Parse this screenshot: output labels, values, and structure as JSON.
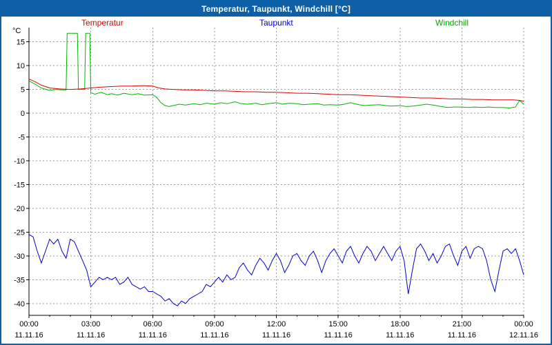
{
  "window": {
    "title": "Temperatur, Taupunkt, Windchill [°C]"
  },
  "legend": {
    "temperatur": "Temperatur",
    "taupunkt": "Taupunkt",
    "windchill": "Windchill"
  },
  "y_axis_unit": "°C",
  "colors": {
    "titlebar_bg": "#0d5fa6",
    "border": "#0d5fa6",
    "temperatur": "#dd0000",
    "taupunkt": "#0000cc",
    "windchill": "#00b400",
    "grid": "#999999",
    "axis": "#000000",
    "background": "#ffffff"
  },
  "chart_data": {
    "type": "line",
    "title": "Temperatur, Taupunkt, Windchill [°C]",
    "x_unit": "time (hours, 11.11.16 00:00 - 12.11.16 00:00)",
    "ylabel": "°C",
    "xlim": [
      0,
      24
    ],
    "ylim": [
      -42.5,
      18
    ],
    "grid": "dashed",
    "legend_position": "top",
    "y_ticks": [
      15,
      10,
      5,
      0,
      -5,
      -10,
      -15,
      -20,
      -25,
      -30,
      -35,
      -40
    ],
    "x_ticks": [
      {
        "hour": 0,
        "label": "00:00",
        "date": "11.11.16"
      },
      {
        "hour": 3,
        "label": "03:00",
        "date": "11.11.16"
      },
      {
        "hour": 6,
        "label": "06:00",
        "date": "11.11.16"
      },
      {
        "hour": 9,
        "label": "09:00",
        "date": "11.11.16"
      },
      {
        "hour": 12,
        "label": "12:00",
        "date": "11.11.16"
      },
      {
        "hour": 15,
        "label": "15:00",
        "date": "11.11.16"
      },
      {
        "hour": 18,
        "label": "18:00",
        "date": "11.11.16"
      },
      {
        "hour": 21,
        "label": "21:00",
        "date": "11.11.16"
      },
      {
        "hour": 24,
        "label": "00:00",
        "date": "12.11.16"
      }
    ],
    "series": [
      {
        "name": "Windchill",
        "color": "#00b400",
        "points": [
          [
            0,
            6.8
          ],
          [
            0.3,
            6.1
          ],
          [
            0.6,
            5.3
          ],
          [
            1,
            4.8
          ],
          [
            1.3,
            5.0
          ],
          [
            1.6,
            4.9
          ],
          [
            1.8,
            4.9
          ],
          [
            1.85,
            16.8
          ],
          [
            2.35,
            16.8
          ],
          [
            2.4,
            5.0
          ],
          [
            2.7,
            5.0
          ],
          [
            2.75,
            16.8
          ],
          [
            2.95,
            16.8
          ],
          [
            3,
            4.3
          ],
          [
            3.2,
            4.0
          ],
          [
            3.5,
            4.4
          ],
          [
            3.8,
            3.9
          ],
          [
            4,
            4.1
          ],
          [
            4.3,
            3.8
          ],
          [
            4.6,
            4.2
          ],
          [
            5,
            3.9
          ],
          [
            5.3,
            4.1
          ],
          [
            5.6,
            3.8
          ],
          [
            6,
            3.9
          ],
          [
            6.2,
            3.3
          ],
          [
            6.4,
            2.2
          ],
          [
            6.6,
            1.6
          ],
          [
            6.8,
            1.4
          ],
          [
            7,
            1.6
          ],
          [
            7.3,
            1.9
          ],
          [
            7.6,
            1.7
          ],
          [
            8,
            2.0
          ],
          [
            8.3,
            1.8
          ],
          [
            8.6,
            2.1
          ],
          [
            9,
            1.9
          ],
          [
            9.3,
            2.2
          ],
          [
            9.6,
            2.0
          ],
          [
            10,
            2.4
          ],
          [
            10.3,
            2.0
          ],
          [
            10.6,
            1.9
          ],
          [
            11,
            2.1
          ],
          [
            11.3,
            1.8
          ],
          [
            11.6,
            2.0
          ],
          [
            12,
            2.2
          ],
          [
            12.3,
            1.9
          ],
          [
            12.6,
            2.1
          ],
          [
            13,
            2.0
          ],
          [
            13.3,
            1.8
          ],
          [
            13.6,
            1.9
          ],
          [
            14,
            2.0
          ],
          [
            14.3,
            1.7
          ],
          [
            14.6,
            1.8
          ],
          [
            15,
            1.7
          ],
          [
            15.3,
            1.9
          ],
          [
            15.6,
            2.2
          ],
          [
            16,
            1.8
          ],
          [
            16.3,
            1.6
          ],
          [
            16.6,
            1.7
          ],
          [
            17,
            1.8
          ],
          [
            17.3,
            1.6
          ],
          [
            17.6,
            1.5
          ],
          [
            18,
            1.6
          ],
          [
            18.3,
            1.4
          ],
          [
            18.6,
            1.5
          ],
          [
            19,
            1.7
          ],
          [
            19.3,
            1.9
          ],
          [
            19.6,
            1.7
          ],
          [
            20,
            1.4
          ],
          [
            20.3,
            1.2
          ],
          [
            20.6,
            1.3
          ],
          [
            21,
            1.3
          ],
          [
            21.3,
            1.2
          ],
          [
            21.6,
            1.3
          ],
          [
            22,
            1.2
          ],
          [
            22.3,
            1.3
          ],
          [
            22.6,
            1.2
          ],
          [
            23,
            1.2
          ],
          [
            23.3,
            1.1
          ],
          [
            23.6,
            1.3
          ],
          [
            23.8,
            2.7
          ],
          [
            24,
            1.9
          ]
        ]
      },
      {
        "name": "Temperatur",
        "color": "#dd0000",
        "points": [
          [
            0,
            7.2
          ],
          [
            0.3,
            6.6
          ],
          [
            0.6,
            5.9
          ],
          [
            1,
            5.3
          ],
          [
            1.5,
            5.1
          ],
          [
            2,
            5.0
          ],
          [
            2.5,
            5.1
          ],
          [
            3,
            5.3
          ],
          [
            3.5,
            5.5
          ],
          [
            4,
            5.6
          ],
          [
            4.5,
            5.7
          ],
          [
            5,
            5.7
          ],
          [
            5.5,
            5.8
          ],
          [
            6,
            5.7
          ],
          [
            6.3,
            5.3
          ],
          [
            6.6,
            5.1
          ],
          [
            7,
            5.0
          ],
          [
            7.5,
            4.9
          ],
          [
            8,
            4.9
          ],
          [
            8.5,
            4.8
          ],
          [
            9,
            4.7
          ],
          [
            9.5,
            4.7
          ],
          [
            10,
            4.6
          ],
          [
            10.5,
            4.5
          ],
          [
            11,
            4.5
          ],
          [
            11.5,
            4.4
          ],
          [
            12,
            4.4
          ],
          [
            12.5,
            4.3
          ],
          [
            13,
            4.2
          ],
          [
            13.5,
            4.2
          ],
          [
            14,
            4.1
          ],
          [
            14.5,
            4.0
          ],
          [
            15,
            3.9
          ],
          [
            15.5,
            3.9
          ],
          [
            16,
            3.8
          ],
          [
            16.5,
            3.7
          ],
          [
            17,
            3.6
          ],
          [
            17.5,
            3.5
          ],
          [
            18,
            3.4
          ],
          [
            18.5,
            3.3
          ],
          [
            19,
            3.2
          ],
          [
            19.5,
            3.2
          ],
          [
            20,
            3.1
          ],
          [
            20.5,
            3.0
          ],
          [
            21,
            3.0
          ],
          [
            21.5,
            2.9
          ],
          [
            22,
            2.9
          ],
          [
            22.5,
            2.8
          ],
          [
            23,
            2.8
          ],
          [
            23.5,
            2.8
          ],
          [
            23.8,
            2.7
          ],
          [
            24,
            2.5
          ]
        ]
      },
      {
        "name": "Taupunkt",
        "color": "#0000cc",
        "points": [
          [
            0,
            -25.5
          ],
          [
            0.2,
            -26
          ],
          [
            0.4,
            -29
          ],
          [
            0.6,
            -31.5
          ],
          [
            0.8,
            -29
          ],
          [
            1,
            -26.5
          ],
          [
            1.2,
            -27.5
          ],
          [
            1.4,
            -26.5
          ],
          [
            1.6,
            -29
          ],
          [
            1.8,
            -30.5
          ],
          [
            2,
            -26.5
          ],
          [
            2.2,
            -27
          ],
          [
            2.4,
            -29
          ],
          [
            2.6,
            -31
          ],
          [
            2.8,
            -33
          ],
          [
            3,
            -36.5
          ],
          [
            3.2,
            -35.5
          ],
          [
            3.4,
            -34.5
          ],
          [
            3.6,
            -35
          ],
          [
            3.8,
            -34.5
          ],
          [
            4,
            -35
          ],
          [
            4.2,
            -34.5
          ],
          [
            4.4,
            -36
          ],
          [
            4.6,
            -35.5
          ],
          [
            4.8,
            -34.5
          ],
          [
            5,
            -36
          ],
          [
            5.2,
            -36.5
          ],
          [
            5.4,
            -37
          ],
          [
            5.6,
            -36.5
          ],
          [
            5.8,
            -37.5
          ],
          [
            6,
            -37.5
          ],
          [
            6.2,
            -38
          ],
          [
            6.4,
            -38.5
          ],
          [
            6.6,
            -39.5
          ],
          [
            6.8,
            -39
          ],
          [
            7,
            -40
          ],
          [
            7.2,
            -40.5
          ],
          [
            7.4,
            -39.5
          ],
          [
            7.6,
            -40
          ],
          [
            7.8,
            -39
          ],
          [
            8,
            -38.5
          ],
          [
            8.2,
            -38
          ],
          [
            8.4,
            -37.5
          ],
          [
            8.6,
            -36
          ],
          [
            8.8,
            -36.5
          ],
          [
            9,
            -35.5
          ],
          [
            9.2,
            -34.5
          ],
          [
            9.4,
            -35.5
          ],
          [
            9.6,
            -34
          ],
          [
            9.8,
            -35
          ],
          [
            10,
            -34.5
          ],
          [
            10.2,
            -32.5
          ],
          [
            10.4,
            -31.5
          ],
          [
            10.6,
            -33
          ],
          [
            10.8,
            -34
          ],
          [
            11,
            -32
          ],
          [
            11.2,
            -30.5
          ],
          [
            11.4,
            -31.5
          ],
          [
            11.6,
            -33
          ],
          [
            11.8,
            -31
          ],
          [
            12,
            -29.5
          ],
          [
            12.2,
            -31
          ],
          [
            12.4,
            -33.5
          ],
          [
            12.6,
            -32
          ],
          [
            12.8,
            -30
          ],
          [
            13,
            -29.5
          ],
          [
            13.2,
            -31
          ],
          [
            13.4,
            -32
          ],
          [
            13.6,
            -30
          ],
          [
            13.8,
            -29
          ],
          [
            14,
            -31
          ],
          [
            14.2,
            -33.5
          ],
          [
            14.4,
            -31
          ],
          [
            14.6,
            -29.5
          ],
          [
            14.8,
            -28.5
          ],
          [
            15,
            -30
          ],
          [
            15.2,
            -31.5
          ],
          [
            15.4,
            -29
          ],
          [
            15.6,
            -28
          ],
          [
            15.8,
            -30
          ],
          [
            16,
            -31.5
          ],
          [
            16.2,
            -29.5
          ],
          [
            16.4,
            -28
          ],
          [
            16.6,
            -29
          ],
          [
            16.8,
            -31
          ],
          [
            17,
            -29.5
          ],
          [
            17.2,
            -28
          ],
          [
            17.4,
            -29.5
          ],
          [
            17.6,
            -31
          ],
          [
            17.8,
            -29
          ],
          [
            18,
            -28
          ],
          [
            18.2,
            -31
          ],
          [
            18.4,
            -38
          ],
          [
            18.6,
            -33
          ],
          [
            18.8,
            -28.5
          ],
          [
            19,
            -27.5
          ],
          [
            19.2,
            -29
          ],
          [
            19.4,
            -31
          ],
          [
            19.6,
            -29.5
          ],
          [
            19.8,
            -31.5
          ],
          [
            20,
            -30
          ],
          [
            20.2,
            -28
          ],
          [
            20.4,
            -27.5
          ],
          [
            20.6,
            -30
          ],
          [
            20.8,
            -32
          ],
          [
            21,
            -29
          ],
          [
            21.2,
            -28
          ],
          [
            21.4,
            -30.5
          ],
          [
            21.6,
            -28.5
          ],
          [
            21.8,
            -28
          ],
          [
            22,
            -28.5
          ],
          [
            22.2,
            -31
          ],
          [
            22.4,
            -35
          ],
          [
            22.6,
            -37.5
          ],
          [
            22.8,
            -33
          ],
          [
            23,
            -29
          ],
          [
            23.2,
            -28.5
          ],
          [
            23.4,
            -29.5
          ],
          [
            23.6,
            -28.5
          ],
          [
            23.8,
            -31
          ],
          [
            24,
            -34
          ]
        ]
      }
    ]
  }
}
